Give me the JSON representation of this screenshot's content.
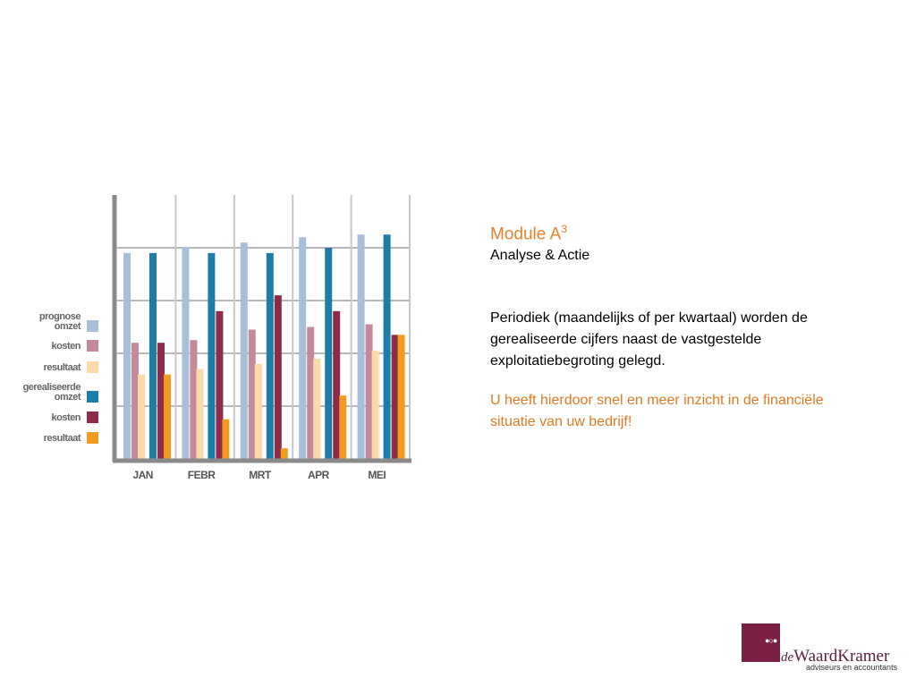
{
  "chart_data": {
    "type": "bar",
    "categories": [
      "JAN",
      "FEBR",
      "MRT",
      "APR",
      "MEI"
    ],
    "series": [
      {
        "name": "prognose omzet",
        "values": [
          78,
          80,
          82,
          84,
          85
        ],
        "color": "#a7bfd8"
      },
      {
        "name": "kosten",
        "values": [
          44,
          45,
          49,
          50,
          51
        ],
        "color": "#c48a9c"
      },
      {
        "name": "resultaat",
        "values": [
          32,
          34,
          36,
          38,
          41
        ],
        "color": "#fbd9a8"
      },
      {
        "name": "gerealiseerde omzet",
        "values": [
          78,
          78,
          78,
          80,
          85
        ],
        "color": "#1c7ea8"
      },
      {
        "name": "kosten",
        "values": [
          44,
          56,
          62,
          56,
          47
        ],
        "color": "#8e2b48"
      },
      {
        "name": "resultaat",
        "values": [
          32,
          15,
          4,
          24,
          47
        ],
        "color": "#f39b1c"
      }
    ],
    "legend": {
      "position": "left",
      "items": [
        [
          "prognose",
          "omzet"
        ],
        [
          "kosten"
        ],
        [
          "resultaat"
        ],
        [
          "gerealiseerde",
          "omzet"
        ],
        [
          "kosten"
        ],
        [
          "resultaat"
        ]
      ]
    },
    "grid": true,
    "title": "",
    "xlabel": "",
    "ylabel": "",
    "ylim": [
      0,
      100
    ]
  },
  "text": {
    "title_main": "Module A",
    "title_sup": "3",
    "subtitle": "Analyse & Actie",
    "paragraph1": "Periodiek (maandelijks of per kwartaal) worden de gerealiseerde cijfers naast de vastgestelde exploitatiebegroting gelegd.",
    "paragraph2": "U heeft hierdoor snel en meer inzicht in de financiële situatie van uw bedrijf!"
  },
  "logo": {
    "name_prefix": "de",
    "name": "WaardKramer",
    "tagline": "adviseurs en accountants",
    "color": "#7b1f45"
  }
}
